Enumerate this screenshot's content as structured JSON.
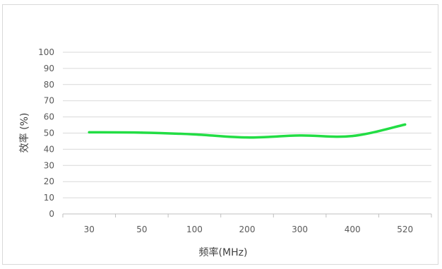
{
  "chart_data": {
    "type": "line",
    "title": "",
    "xlabel": "频率(MHz)",
    "ylabel": "效率 (%)",
    "categories": [
      "30",
      "50",
      "100",
      "200",
      "300",
      "400",
      "520"
    ],
    "ylim": [
      0,
      100
    ],
    "yticks": [
      0,
      10,
      20,
      30,
      40,
      50,
      60,
      70,
      80,
      90,
      100
    ],
    "grid": true,
    "legend": "none",
    "series": [
      {
        "values": [
          50.5,
          50.3,
          49.2,
          47.3,
          48.5,
          48.2,
          55.3
        ],
        "color": "#22dd44",
        "smooth": true
      }
    ]
  }
}
